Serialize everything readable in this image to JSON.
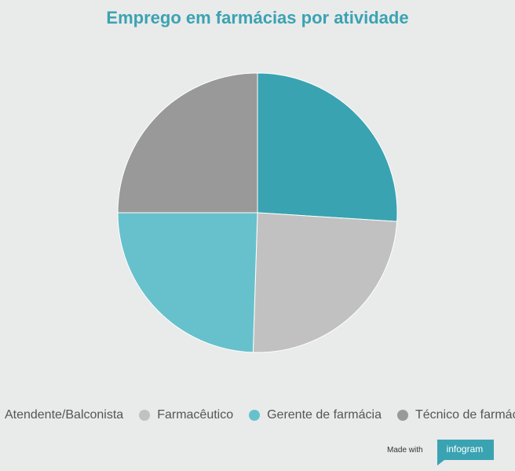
{
  "title": "Emprego em farmácias por atividade",
  "chart_data": {
    "type": "pie",
    "title": "Emprego em farmácias por atividade",
    "legend_position": "bottom",
    "slices": [
      {
        "label": "Atendente/Balconista",
        "value": 26.0,
        "color": "#3aa3b2"
      },
      {
        "label": "Farmacêutico",
        "value": 24.5,
        "color": "#c1c1c1"
      },
      {
        "label": "Gerente de farmácia",
        "value": 24.5,
        "color": "#67c1cc"
      },
      {
        "label": "Técnico de farmácia",
        "value": 25.0,
        "color": "#999999"
      }
    ]
  },
  "branding": {
    "made_with": "Made with",
    "brand": "infogram"
  }
}
